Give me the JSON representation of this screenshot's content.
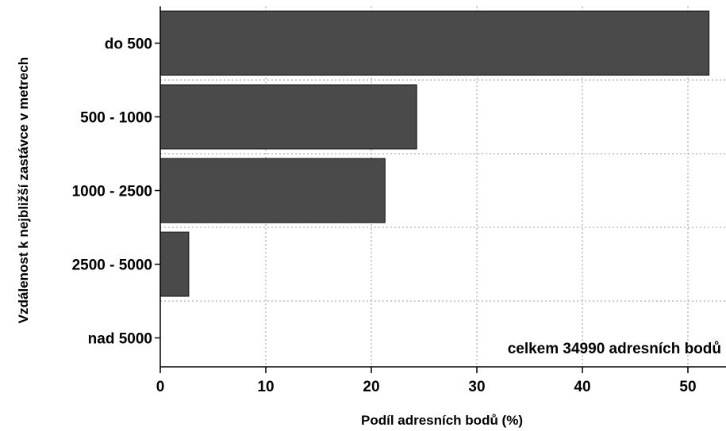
{
  "chart_data": {
    "type": "bar",
    "orientation": "horizontal",
    "categories": [
      "do 500",
      "500 - 1000",
      "1000 - 2500",
      "2500 - 5000",
      "nad 5000"
    ],
    "values": [
      52.0,
      24.3,
      21.3,
      2.7,
      0.0
    ],
    "xlabel": "Podíl adresních bodů (%)",
    "ylabel": "Vzdálenost k nejbližší zastávce v metrech",
    "xlim": [
      0,
      53
    ],
    "xticks": [
      0,
      10,
      20,
      30,
      40,
      50
    ],
    "annotation": "celkem 34990 adresních bodů",
    "grid": true,
    "bar_color": "#4a4a4a"
  }
}
